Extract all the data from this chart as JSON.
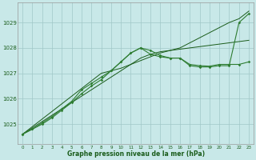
{
  "x": [
    0,
    1,
    2,
    3,
    4,
    5,
    6,
    7,
    8,
    9,
    10,
    11,
    12,
    13,
    14,
    15,
    16,
    17,
    18,
    19,
    20,
    21,
    22,
    23
  ],
  "line_straight1": [
    1024.6,
    1024.85,
    1025.1,
    1025.35,
    1025.6,
    1025.85,
    1026.1,
    1026.35,
    1026.6,
    1026.85,
    1027.1,
    1027.35,
    1027.6,
    1027.75,
    1027.85,
    1027.9,
    1027.95,
    1028.0,
    1028.05,
    1028.1,
    1028.15,
    1028.2,
    1028.25,
    1028.3
  ],
  "line_straight2": [
    1024.6,
    1024.9,
    1025.2,
    1025.5,
    1025.8,
    1026.1,
    1026.4,
    1026.7,
    1027.0,
    1027.1,
    1027.2,
    1027.35,
    1027.5,
    1027.65,
    1027.8,
    1027.9,
    1028.0,
    1028.2,
    1028.4,
    1028.6,
    1028.8,
    1029.0,
    1029.15,
    1029.45
  ],
  "line_wavy1": [
    1024.6,
    1024.8,
    1025.0,
    1025.25,
    1025.55,
    1025.85,
    1026.2,
    1026.5,
    1026.75,
    1027.1,
    1027.45,
    1027.8,
    1028.0,
    1027.75,
    1027.65,
    1027.6,
    1027.6,
    1027.35,
    1027.3,
    1027.28,
    1027.35,
    1027.35,
    1027.35,
    1027.45
  ],
  "line_wavy2": [
    1024.6,
    1024.8,
    1025.05,
    1025.3,
    1025.6,
    1025.9,
    1026.35,
    1026.6,
    1026.85,
    1027.1,
    1027.45,
    1027.8,
    1028.0,
    1027.9,
    1027.7,
    1027.6,
    1027.6,
    1027.3,
    1027.25,
    1027.25,
    1027.3,
    1027.3,
    1029.0,
    1029.35
  ],
  "background_color": "#c8e8e8",
  "grid_color": "#a0c8c8",
  "line_color_dark": "#1a5c1a",
  "line_color_mid": "#2e7d32",
  "ylabel_vals": [
    1025,
    1026,
    1027,
    1028,
    1029
  ],
  "xlabel": "Graphe pression niveau de la mer (hPa)",
  "xlim": [
    -0.5,
    23.5
  ],
  "ylim": [
    1024.2,
    1029.8
  ]
}
